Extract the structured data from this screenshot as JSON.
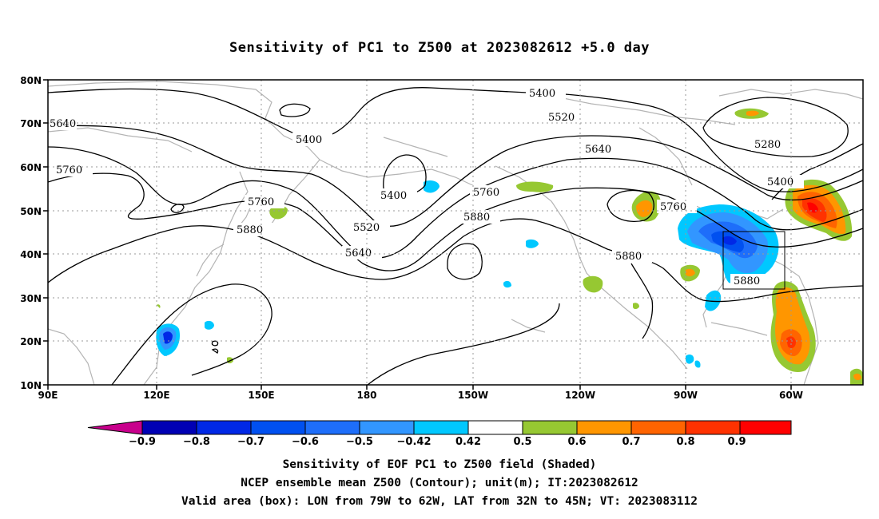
{
  "title": "Sensitivity of PC1 to Z500 at 2023082612 +5.0 day",
  "lat_labels": [
    "80N",
    "70N",
    "60N",
    "50N",
    "40N",
    "30N",
    "20N",
    "10N"
  ],
  "lon_labels": [
    "90E",
    "120E",
    "150E",
    "180",
    "150W",
    "120W",
    "90W",
    "60W"
  ],
  "contour_levels": [
    "5280",
    "5400",
    "5520",
    "5640",
    "5760",
    "5880"
  ],
  "colorbar": {
    "ticks": [
      "−0.9",
      "−0.8",
      "−0.7",
      "−0.6",
      "−0.5",
      "−0.42",
      "0.42",
      "0.5",
      "0.6",
      "0.7",
      "0.8",
      "0.9"
    ],
    "colors": [
      "#c8008c",
      "#0000b4",
      "#0028e6",
      "#0050f0",
      "#1e6efa",
      "#3296ff",
      "#00c8ff",
      "#ffffff",
      "#96c832",
      "#ff9600",
      "#ff6400",
      "#ff3200",
      "#ff0000",
      "#ffa0c8"
    ]
  },
  "valid_box": "Valid area (box)",
  "footer": {
    "line1": "Sensitivity of EOF PC1 to Z500 field (Shaded)",
    "line2": "NCEP ensemble mean Z500 (Contour); unit(m); IT:2023082612",
    "line3": "Valid area (box): LON from 79W to 62W, LAT from 32N to 45N; VT: 2023083112"
  }
}
